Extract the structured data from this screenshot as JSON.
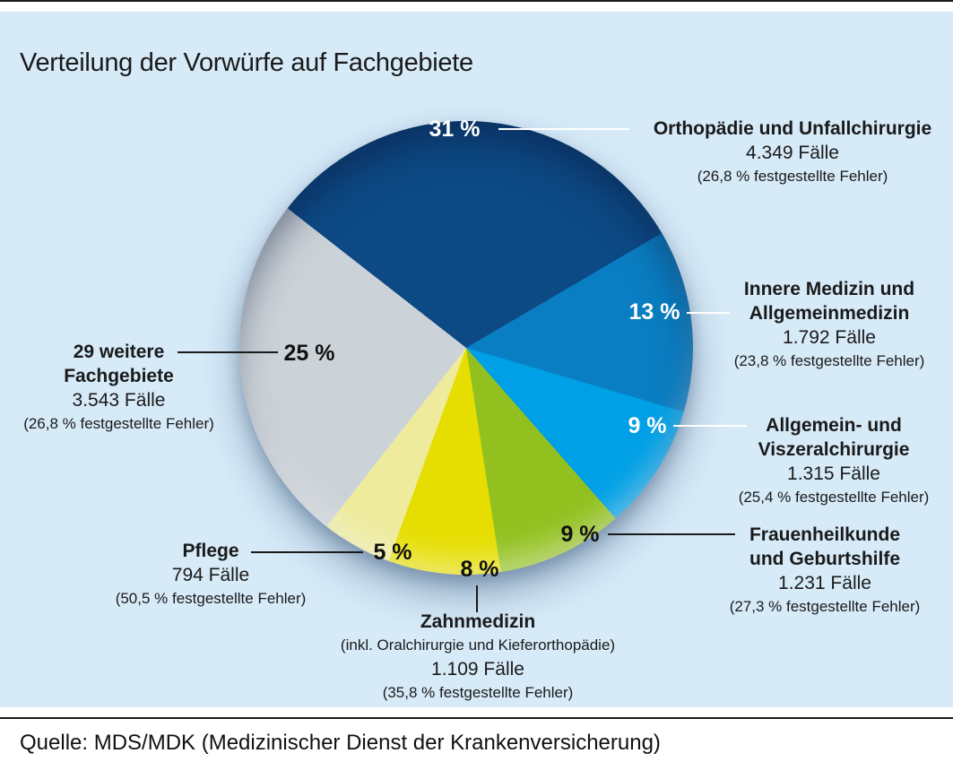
{
  "title": "Verteilung der Vorwürfe auf Fachgebiete",
  "source": "Quelle: MDS/MDK (Medizinischer Dienst der Krankenversicherung)",
  "colors": {
    "panel_background": "#d6eaf8",
    "page_background": "#ffffff",
    "rule": "#1a1a1a"
  },
  "chart_data": {
    "type": "pie",
    "title": "Verteilung der Vorwürfe auf Fachgebiete",
    "start_angle_deg": -52,
    "legend_position": "around",
    "slices": [
      {
        "name": "Orthopädie und Unfallchirurgie",
        "name_lines": [
          "Orthopädie und Unfallchirurgie"
        ],
        "percent": 31,
        "percent_label": "31 %",
        "percent_color": "#ffffff",
        "cases": 4349,
        "cases_label": "4.349 Fälle",
        "error_label": "(26,8 % festgestellte Fehler)",
        "color": "#0d4a85"
      },
      {
        "name": "Innere Medizin und Allgemeinmedizin",
        "name_lines": [
          "Innere Medizin und",
          "Allgemeinmedizin"
        ],
        "percent": 13,
        "percent_label": "13 %",
        "percent_color": "#ffffff",
        "cases": 1792,
        "cases_label": "1.792 Fälle",
        "error_label": "(23,8 % festgestellte Fehler)",
        "color": "#0a7ec2"
      },
      {
        "name": "Allgemein- und Viszeralchirurgie",
        "name_lines": [
          "Allgemein- und",
          "Viszeralchirurgie"
        ],
        "percent": 9,
        "percent_label": "9 %",
        "percent_color": "#ffffff",
        "cases": 1315,
        "cases_label": "1.315 Fälle",
        "error_label": "(25,4 % festgestellte Fehler)",
        "color": "#00a0e6"
      },
      {
        "name": "Frauenheilkunde und Geburtshilfe",
        "name_lines": [
          "Frauenheilkunde",
          "und Geburtshilfe"
        ],
        "percent": 9,
        "percent_label": "9 %",
        "percent_color": "#111111",
        "cases": 1231,
        "cases_label": "1.231 Fälle",
        "error_label": "(27,3 % festgestellte Fehler)",
        "color": "#92c11f"
      },
      {
        "name": "Zahnmedizin",
        "name_lines": [
          "Zahnmedizin"
        ],
        "sub_label": "(inkl. Oralchirurgie und Kieferorthopädie)",
        "percent": 8,
        "percent_label": "8 %",
        "percent_color": "#111111",
        "cases": 1109,
        "cases_label": "1.109 Fälle",
        "error_label": "(35,8 % festgestellte Fehler)",
        "color": "#e6de00"
      },
      {
        "name": "Pflege",
        "name_lines": [
          "Pflege"
        ],
        "percent": 5,
        "percent_label": "5 %",
        "percent_color": "#111111",
        "cases": 794,
        "cases_label": "794 Fälle",
        "error_label": "(50,5 % festgestellte Fehler)",
        "color": "#eeeb9c"
      },
      {
        "name": "29 weitere Fachgebiete",
        "name_lines": [
          "29 weitere",
          "Fachgebiete"
        ],
        "percent": 25,
        "percent_label": "25 %",
        "percent_color": "#111111",
        "cases": 3543,
        "cases_label": "3.543 Fälle",
        "error_label": "(26,8 % festgestellte Fehler)",
        "color": "#ccd3d8"
      }
    ]
  }
}
